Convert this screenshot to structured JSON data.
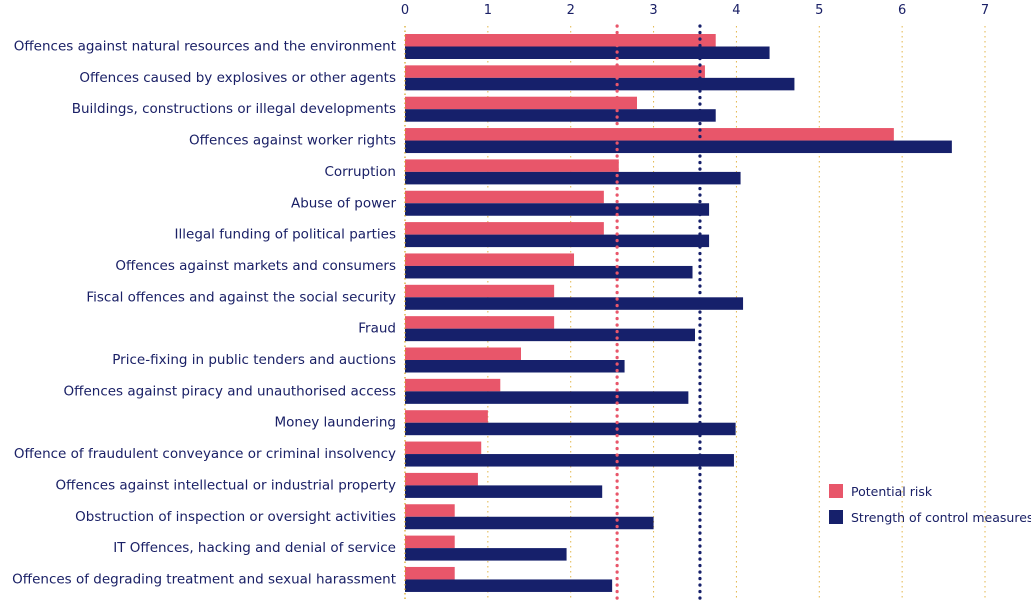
{
  "chart_data": {
    "type": "bar",
    "orientation": "horizontal",
    "title": "",
    "xlabel": "",
    "ylabel": "",
    "xlim": [
      0,
      7
    ],
    "xticks": [
      "0",
      "1",
      "2",
      "3",
      "4",
      "5",
      "6",
      "7"
    ],
    "tick_positions": [
      0,
      1,
      2,
      3,
      4,
      5,
      6,
      7
    ],
    "grid": "vertical dotted",
    "legend_position": "bottom-right",
    "categories": [
      "Offences against natural resources and the environment",
      "Offences caused by explosives or other agents",
      "Buildings, constructions or illegal developments",
      "Offences against worker rights",
      "Corruption",
      "Abuse of power",
      "Illegal funding of political parties",
      "Offences against markets and consumers",
      "Fiscal offences and against the social security",
      "Fraud",
      "Price-fixing in public tenders and auctions",
      "Offences against piracy and unauthorised access",
      "Money laundering",
      "Offence of fraudulent conveyance or criminal insolvency",
      "Offences against intellectual or industrial property",
      "Obstruction of inspection or oversight activities",
      "IT Offences, hacking and denial of service",
      "Offences of degrading treatment and sexual harassment"
    ],
    "series": [
      {
        "name": "Potential risk",
        "color": "#e8566a",
        "values": [
          3.75,
          3.62,
          2.8,
          5.9,
          2.58,
          2.4,
          2.4,
          2.04,
          1.8,
          1.8,
          1.4,
          1.15,
          1.0,
          0.92,
          0.88,
          0.6,
          0.6,
          0.6
        ]
      },
      {
        "name": "Strength of control measures",
        "color": "#16206b",
        "values": [
          4.4,
          4.7,
          3.75,
          6.6,
          4.05,
          3.67,
          3.67,
          3.47,
          4.08,
          3.5,
          2.65,
          3.42,
          3.99,
          3.97,
          2.38,
          3.0,
          1.95,
          2.5
        ]
      }
    ],
    "reference_lines": [
      {
        "name": "Potential risk average",
        "value": 2.56,
        "color": "#e8566a"
      },
      {
        "name": "Strength of control measures average",
        "value": 3.56,
        "color": "#16206b"
      }
    ]
  }
}
